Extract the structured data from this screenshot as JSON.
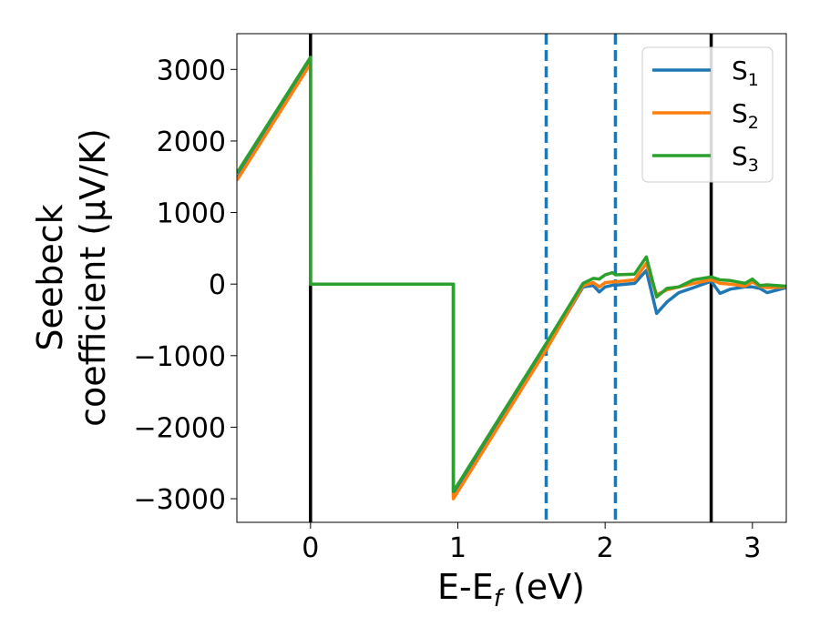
{
  "chart_data": {
    "type": "line",
    "title": "",
    "xlabel": "E-E",
    "xlabel_sub": "f",
    "xlabel_unit": " (eV)",
    "ylabel_line1": "Seebeck",
    "ylabel_line2": "coefficient  (μV/K)",
    "xlim": [
      -0.5,
      3.23
    ],
    "ylim": [
      -3330,
      3500
    ],
    "xticks": [
      0,
      1,
      2,
      3
    ],
    "xtick_labels": [
      "0",
      "1",
      "2",
      "3"
    ],
    "yticks": [
      3000,
      2000,
      1000,
      0,
      -1000,
      -2000,
      -3000
    ],
    "ytick_labels": [
      "3000",
      "2000",
      "1000",
      "0",
      "−1000",
      "−2000",
      "−3000"
    ],
    "grid": false,
    "legend_position": "top-right",
    "vlines": [
      {
        "x": 0,
        "style": "solid",
        "color": "#000000"
      },
      {
        "x": 1.6,
        "style": "dashed",
        "color": "#1f77b4"
      },
      {
        "x": 2.07,
        "style": "dashed",
        "color": "#1f77b4"
      },
      {
        "x": 2.72,
        "style": "solid",
        "color": "#000000"
      }
    ],
    "series": [
      {
        "name": "S",
        "sub": "1",
        "color": "#1f77b4",
        "points": [
          [
            -0.5,
            1470
          ],
          [
            0,
            3100
          ],
          [
            0,
            0
          ],
          [
            0.97,
            0
          ],
          [
            0.97,
            -2970
          ],
          [
            1.6,
            -910
          ],
          [
            1.85,
            -40
          ],
          [
            1.92,
            -20
          ],
          [
            1.96,
            -110
          ],
          [
            2.0,
            -40
          ],
          [
            2.05,
            -15
          ],
          [
            2.07,
            -15
          ],
          [
            2.2,
            10
          ],
          [
            2.28,
            190
          ],
          [
            2.35,
            -410
          ],
          [
            2.42,
            -250
          ],
          [
            2.5,
            -120
          ],
          [
            2.6,
            -50
          ],
          [
            2.72,
            40
          ],
          [
            2.78,
            -130
          ],
          [
            2.85,
            -70
          ],
          [
            2.95,
            -40
          ],
          [
            3.0,
            -40
          ],
          [
            3.05,
            -60
          ],
          [
            3.1,
            -120
          ],
          [
            3.23,
            -50
          ]
        ]
      },
      {
        "name": "S",
        "sub": "2",
        "color": "#ff7f0e",
        "points": [
          [
            -0.5,
            1450
          ],
          [
            0,
            3080
          ],
          [
            0,
            0
          ],
          [
            0.97,
            0
          ],
          [
            0.97,
            -3000
          ],
          [
            1.6,
            -920
          ],
          [
            1.85,
            -20
          ],
          [
            1.92,
            20
          ],
          [
            1.96,
            -40
          ],
          [
            2.0,
            20
          ],
          [
            2.05,
            30
          ],
          [
            2.07,
            30
          ],
          [
            2.2,
            60
          ],
          [
            2.28,
            290
          ],
          [
            2.35,
            -150
          ],
          [
            2.42,
            -80
          ],
          [
            2.5,
            -40
          ],
          [
            2.6,
            10
          ],
          [
            2.72,
            60
          ],
          [
            2.78,
            10
          ],
          [
            2.85,
            0
          ],
          [
            2.95,
            -30
          ],
          [
            3.0,
            30
          ],
          [
            3.05,
            -30
          ],
          [
            3.1,
            -50
          ],
          [
            3.23,
            -40
          ]
        ]
      },
      {
        "name": "S",
        "sub": "3",
        "color": "#2ca02c",
        "points": [
          [
            -0.5,
            1550
          ],
          [
            0,
            3170
          ],
          [
            0,
            0
          ],
          [
            0.97,
            0
          ],
          [
            0.97,
            -2900
          ],
          [
            1.6,
            -830
          ],
          [
            1.85,
            10
          ],
          [
            1.92,
            80
          ],
          [
            1.96,
            70
          ],
          [
            2.0,
            130
          ],
          [
            2.05,
            160
          ],
          [
            2.07,
            130
          ],
          [
            2.2,
            140
          ],
          [
            2.28,
            380
          ],
          [
            2.35,
            -180
          ],
          [
            2.42,
            -60
          ],
          [
            2.5,
            -40
          ],
          [
            2.6,
            60
          ],
          [
            2.72,
            100
          ],
          [
            2.78,
            60
          ],
          [
            2.85,
            50
          ],
          [
            2.95,
            10
          ],
          [
            3.0,
            70
          ],
          [
            3.05,
            -20
          ],
          [
            3.1,
            -10
          ],
          [
            3.23,
            -30
          ]
        ]
      }
    ]
  }
}
